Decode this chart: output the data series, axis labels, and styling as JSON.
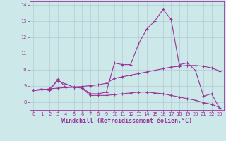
{
  "xlabel": "Windchill (Refroidissement éolien,°C)",
  "background_color": "#cce8e8",
  "line_color": "#993399",
  "xlim": [
    -0.5,
    23.5
  ],
  "ylim": [
    7.5,
    14.2
  ],
  "yticks": [
    8,
    9,
    10,
    11,
    12,
    13,
    14
  ],
  "xticks": [
    0,
    1,
    2,
    3,
    4,
    5,
    6,
    7,
    8,
    9,
    10,
    11,
    12,
    13,
    14,
    15,
    16,
    17,
    18,
    19,
    20,
    21,
    22,
    23
  ],
  "series1_x": [
    0,
    1,
    2,
    3,
    4,
    5,
    6,
    7,
    8,
    9,
    10,
    11,
    12,
    13,
    14,
    15,
    16,
    17,
    18,
    19,
    20,
    21,
    22,
    23
  ],
  "series1_y": [
    8.7,
    8.8,
    8.7,
    9.4,
    8.9,
    8.9,
    8.9,
    8.5,
    8.5,
    8.6,
    10.4,
    10.3,
    10.3,
    11.6,
    12.5,
    13.0,
    13.7,
    13.1,
    10.3,
    10.4,
    9.95,
    8.35,
    8.5,
    7.6
  ],
  "series2_x": [
    0,
    1,
    2,
    3,
    4,
    5,
    6,
    7,
    8,
    9,
    10,
    11,
    12,
    13,
    14,
    15,
    16,
    17,
    18,
    19,
    20,
    21,
    22,
    23
  ],
  "series2_y": [
    8.7,
    8.75,
    8.8,
    8.85,
    8.88,
    8.92,
    8.95,
    9.0,
    9.05,
    9.15,
    9.45,
    9.55,
    9.65,
    9.75,
    9.85,
    9.95,
    10.05,
    10.15,
    10.2,
    10.25,
    10.25,
    10.2,
    10.1,
    9.9
  ],
  "series3_x": [
    0,
    1,
    2,
    3,
    4,
    5,
    6,
    7,
    8,
    9,
    10,
    11,
    12,
    13,
    14,
    15,
    16,
    17,
    18,
    19,
    20,
    21,
    22,
    23
  ],
  "series3_y": [
    8.7,
    8.75,
    8.8,
    9.3,
    9.1,
    8.9,
    8.85,
    8.4,
    8.4,
    8.4,
    8.45,
    8.5,
    8.55,
    8.6,
    8.6,
    8.55,
    8.5,
    8.4,
    8.3,
    8.2,
    8.1,
    7.95,
    7.85,
    7.65
  ],
  "grid_color": "#aabbcc",
  "spine_color": "#993399",
  "tick_color": "#993399",
  "xlabel_fontsize": 6.0,
  "tick_fontsize": 5.0
}
